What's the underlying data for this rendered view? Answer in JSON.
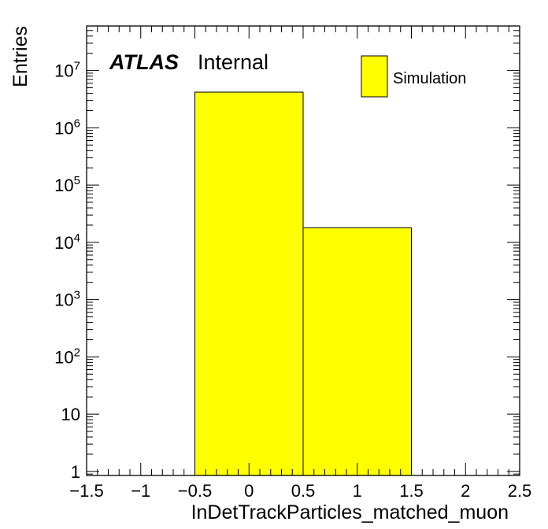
{
  "chart_data": {
    "type": "bar",
    "histogram": true,
    "xlabel": "InDetTrackParticles_matched_muon",
    "ylabel": "Entries",
    "xlim": [
      -1.5,
      2.5
    ],
    "ylim": [
      0.85,
      60000000
    ],
    "ylog": true,
    "bin_edges": [
      -0.5,
      0.5,
      1.5
    ],
    "values": [
      4200000,
      18000
    ],
    "x_ticks": [
      {
        "v": -1.5,
        "label": "−1.5"
      },
      {
        "v": -1,
        "label": "−1"
      },
      {
        "v": -0.5,
        "label": "−0.5"
      },
      {
        "v": 0,
        "label": "0"
      },
      {
        "v": 0.5,
        "label": "0.5"
      },
      {
        "v": 1,
        "label": "1"
      },
      {
        "v": 1.5,
        "label": "1.5"
      },
      {
        "v": 2,
        "label": "2"
      },
      {
        "v": 2.5,
        "label": "2.5"
      }
    ],
    "y_ticks": [
      {
        "v": 1,
        "base": "1",
        "exp": ""
      },
      {
        "v": 10,
        "base": "10",
        "exp": ""
      },
      {
        "v": 100,
        "base": "10",
        "exp": "2"
      },
      {
        "v": 1000,
        "base": "10",
        "exp": "3"
      },
      {
        "v": 10000,
        "base": "10",
        "exp": "4"
      },
      {
        "v": 100000,
        "base": "10",
        "exp": "5"
      },
      {
        "v": 1000000,
        "base": "10",
        "exp": "6"
      },
      {
        "v": 10000000,
        "base": "10",
        "exp": "7"
      }
    ],
    "fill_color": "#ffff00",
    "line_color": "#000000",
    "legend": {
      "entry": "Simulation",
      "position": "top-right"
    },
    "annotation": {
      "bold_text": "ATLAS",
      "text": "Internal"
    }
  }
}
